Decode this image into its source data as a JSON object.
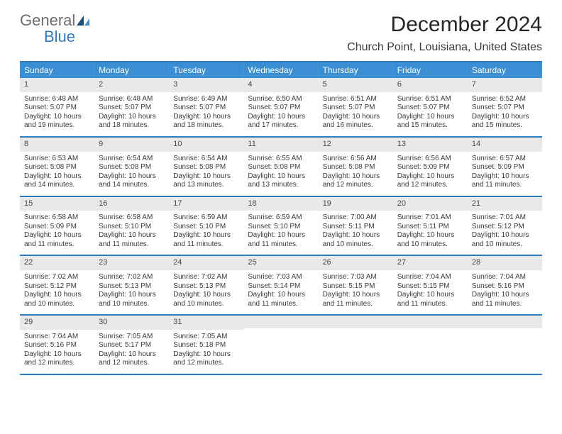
{
  "logo": {
    "general": "General",
    "blue": "Blue"
  },
  "title": "December 2024",
  "subtitle": "Church Point, Louisiana, United States",
  "colors": {
    "header_bar": "#3a8fd4",
    "row_divider": "#2f7bbf",
    "daynum_bg": "#e9e9e9",
    "text": "#3a3a3a",
    "logo_general": "#6e6e6e",
    "logo_blue": "#2f7bbf"
  },
  "dow": [
    "Sunday",
    "Monday",
    "Tuesday",
    "Wednesday",
    "Thursday",
    "Friday",
    "Saturday"
  ],
  "weeks": [
    [
      {
        "n": "1",
        "sunrise": "Sunrise: 6:48 AM",
        "sunset": "Sunset: 5:07 PM",
        "daylight": "Daylight: 10 hours and 19 minutes."
      },
      {
        "n": "2",
        "sunrise": "Sunrise: 6:48 AM",
        "sunset": "Sunset: 5:07 PM",
        "daylight": "Daylight: 10 hours and 18 minutes."
      },
      {
        "n": "3",
        "sunrise": "Sunrise: 6:49 AM",
        "sunset": "Sunset: 5:07 PM",
        "daylight": "Daylight: 10 hours and 18 minutes."
      },
      {
        "n": "4",
        "sunrise": "Sunrise: 6:50 AM",
        "sunset": "Sunset: 5:07 PM",
        "daylight": "Daylight: 10 hours and 17 minutes."
      },
      {
        "n": "5",
        "sunrise": "Sunrise: 6:51 AM",
        "sunset": "Sunset: 5:07 PM",
        "daylight": "Daylight: 10 hours and 16 minutes."
      },
      {
        "n": "6",
        "sunrise": "Sunrise: 6:51 AM",
        "sunset": "Sunset: 5:07 PM",
        "daylight": "Daylight: 10 hours and 15 minutes."
      },
      {
        "n": "7",
        "sunrise": "Sunrise: 6:52 AM",
        "sunset": "Sunset: 5:07 PM",
        "daylight": "Daylight: 10 hours and 15 minutes."
      }
    ],
    [
      {
        "n": "8",
        "sunrise": "Sunrise: 6:53 AM",
        "sunset": "Sunset: 5:08 PM",
        "daylight": "Daylight: 10 hours and 14 minutes."
      },
      {
        "n": "9",
        "sunrise": "Sunrise: 6:54 AM",
        "sunset": "Sunset: 5:08 PM",
        "daylight": "Daylight: 10 hours and 14 minutes."
      },
      {
        "n": "10",
        "sunrise": "Sunrise: 6:54 AM",
        "sunset": "Sunset: 5:08 PM",
        "daylight": "Daylight: 10 hours and 13 minutes."
      },
      {
        "n": "11",
        "sunrise": "Sunrise: 6:55 AM",
        "sunset": "Sunset: 5:08 PM",
        "daylight": "Daylight: 10 hours and 13 minutes."
      },
      {
        "n": "12",
        "sunrise": "Sunrise: 6:56 AM",
        "sunset": "Sunset: 5:08 PM",
        "daylight": "Daylight: 10 hours and 12 minutes."
      },
      {
        "n": "13",
        "sunrise": "Sunrise: 6:56 AM",
        "sunset": "Sunset: 5:09 PM",
        "daylight": "Daylight: 10 hours and 12 minutes."
      },
      {
        "n": "14",
        "sunrise": "Sunrise: 6:57 AM",
        "sunset": "Sunset: 5:09 PM",
        "daylight": "Daylight: 10 hours and 11 minutes."
      }
    ],
    [
      {
        "n": "15",
        "sunrise": "Sunrise: 6:58 AM",
        "sunset": "Sunset: 5:09 PM",
        "daylight": "Daylight: 10 hours and 11 minutes."
      },
      {
        "n": "16",
        "sunrise": "Sunrise: 6:58 AM",
        "sunset": "Sunset: 5:10 PM",
        "daylight": "Daylight: 10 hours and 11 minutes."
      },
      {
        "n": "17",
        "sunrise": "Sunrise: 6:59 AM",
        "sunset": "Sunset: 5:10 PM",
        "daylight": "Daylight: 10 hours and 11 minutes."
      },
      {
        "n": "18",
        "sunrise": "Sunrise: 6:59 AM",
        "sunset": "Sunset: 5:10 PM",
        "daylight": "Daylight: 10 hours and 11 minutes."
      },
      {
        "n": "19",
        "sunrise": "Sunrise: 7:00 AM",
        "sunset": "Sunset: 5:11 PM",
        "daylight": "Daylight: 10 hours and 10 minutes."
      },
      {
        "n": "20",
        "sunrise": "Sunrise: 7:01 AM",
        "sunset": "Sunset: 5:11 PM",
        "daylight": "Daylight: 10 hours and 10 minutes."
      },
      {
        "n": "21",
        "sunrise": "Sunrise: 7:01 AM",
        "sunset": "Sunset: 5:12 PM",
        "daylight": "Daylight: 10 hours and 10 minutes."
      }
    ],
    [
      {
        "n": "22",
        "sunrise": "Sunrise: 7:02 AM",
        "sunset": "Sunset: 5:12 PM",
        "daylight": "Daylight: 10 hours and 10 minutes."
      },
      {
        "n": "23",
        "sunrise": "Sunrise: 7:02 AM",
        "sunset": "Sunset: 5:13 PM",
        "daylight": "Daylight: 10 hours and 10 minutes."
      },
      {
        "n": "24",
        "sunrise": "Sunrise: 7:02 AM",
        "sunset": "Sunset: 5:13 PM",
        "daylight": "Daylight: 10 hours and 10 minutes."
      },
      {
        "n": "25",
        "sunrise": "Sunrise: 7:03 AM",
        "sunset": "Sunset: 5:14 PM",
        "daylight": "Daylight: 10 hours and 11 minutes."
      },
      {
        "n": "26",
        "sunrise": "Sunrise: 7:03 AM",
        "sunset": "Sunset: 5:15 PM",
        "daylight": "Daylight: 10 hours and 11 minutes."
      },
      {
        "n": "27",
        "sunrise": "Sunrise: 7:04 AM",
        "sunset": "Sunset: 5:15 PM",
        "daylight": "Daylight: 10 hours and 11 minutes."
      },
      {
        "n": "28",
        "sunrise": "Sunrise: 7:04 AM",
        "sunset": "Sunset: 5:16 PM",
        "daylight": "Daylight: 10 hours and 11 minutes."
      }
    ],
    [
      {
        "n": "29",
        "sunrise": "Sunrise: 7:04 AM",
        "sunset": "Sunset: 5:16 PM",
        "daylight": "Daylight: 10 hours and 12 minutes."
      },
      {
        "n": "30",
        "sunrise": "Sunrise: 7:05 AM",
        "sunset": "Sunset: 5:17 PM",
        "daylight": "Daylight: 10 hours and 12 minutes."
      },
      {
        "n": "31",
        "sunrise": "Sunrise: 7:05 AM",
        "sunset": "Sunset: 5:18 PM",
        "daylight": "Daylight: 10 hours and 12 minutes."
      },
      {
        "empty": true
      },
      {
        "empty": true
      },
      {
        "empty": true
      },
      {
        "empty": true
      }
    ]
  ]
}
